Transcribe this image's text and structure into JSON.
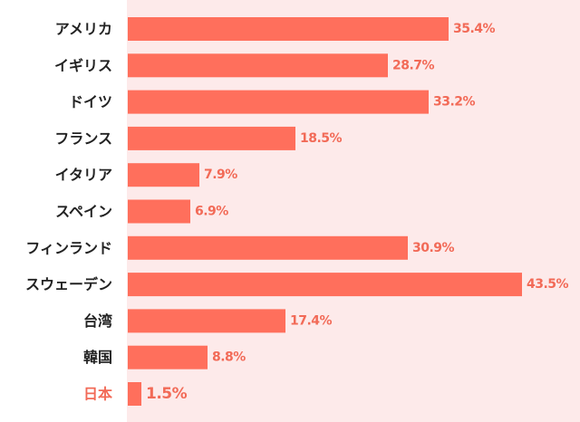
{
  "chart_data": {
    "type": "bar",
    "orientation": "horizontal",
    "categories": [
      "アメリカ",
      "イギリス",
      "ドイツ",
      "フランス",
      "イタリア",
      "スペイン",
      "フィンランド",
      "スウェーデン",
      "台湾",
      "韓国",
      "日本"
    ],
    "values": [
      35.4,
      28.7,
      33.2,
      18.5,
      7.9,
      6.9,
      30.9,
      43.5,
      17.4,
      8.8,
      1.5
    ],
    "value_labels": [
      "35.4%",
      "28.7%",
      "33.2%",
      "18.5%",
      "7.9%",
      "6.9%",
      "30.9%",
      "43.5%",
      "17.4%",
      "8.8%",
      "1.5%"
    ],
    "highlight_category": "日本",
    "xlim": [
      0,
      43.5
    ],
    "grid": false,
    "legend": "none"
  },
  "colors": {
    "bar": "#ff6f5c",
    "value_label": "#f26a57",
    "category_label": "#222222",
    "highlight_label": "#f26a57",
    "plot_background": "#fdeaea"
  }
}
